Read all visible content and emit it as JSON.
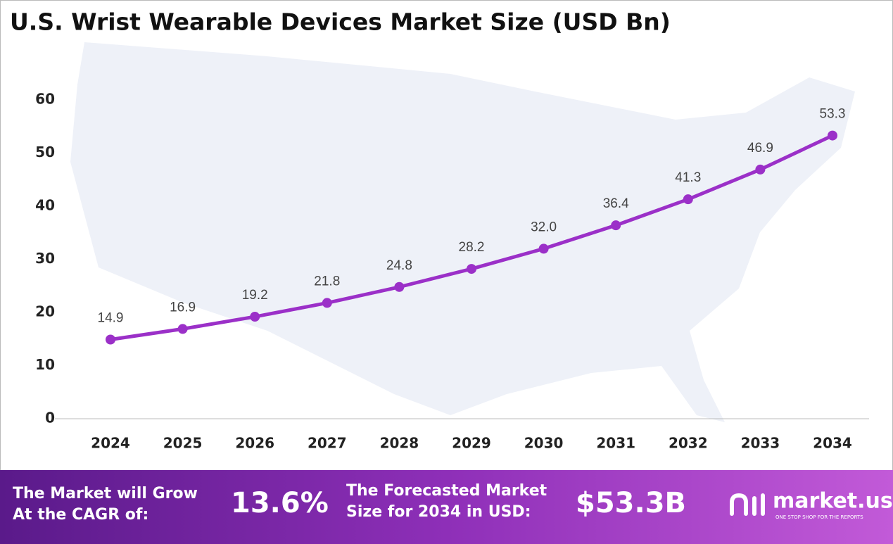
{
  "chart_data": {
    "type": "line",
    "title": "U.S. Wrist Wearable Devices Market Size (USD Bn)",
    "categories": [
      "2024",
      "2025",
      "2026",
      "2027",
      "2028",
      "2029",
      "2030",
      "2031",
      "2032",
      "2033",
      "2034"
    ],
    "series": [
      {
        "name": "Market Size",
        "color": "#9b30c8",
        "values": [
          14.9,
          16.9,
          19.2,
          21.8,
          24.8,
          28.2,
          32.0,
          36.4,
          41.3,
          46.9,
          53.3
        ],
        "value_labels": [
          "14.9",
          "16.9",
          "19.2",
          "21.8",
          "24.8",
          "28.2",
          "32.0",
          "36.4",
          "41.3",
          "46.9",
          "53.3"
        ]
      }
    ],
    "ylim": [
      0,
      60
    ],
    "yticks": [
      0,
      10,
      20,
      30,
      40,
      50,
      60
    ],
    "grid": false,
    "legend": false
  },
  "footer": {
    "cagr_label": [
      "The Market will Grow",
      "At the CAGR of:"
    ],
    "cagr_value": "13.6%",
    "forecast_label": [
      "The Forecasted Market",
      "Size for 2034 in USD:"
    ],
    "forecast_value": "$53.3B",
    "brand": "market.us",
    "tagline": "ONE STOP SHOP FOR THE REPORTS"
  }
}
